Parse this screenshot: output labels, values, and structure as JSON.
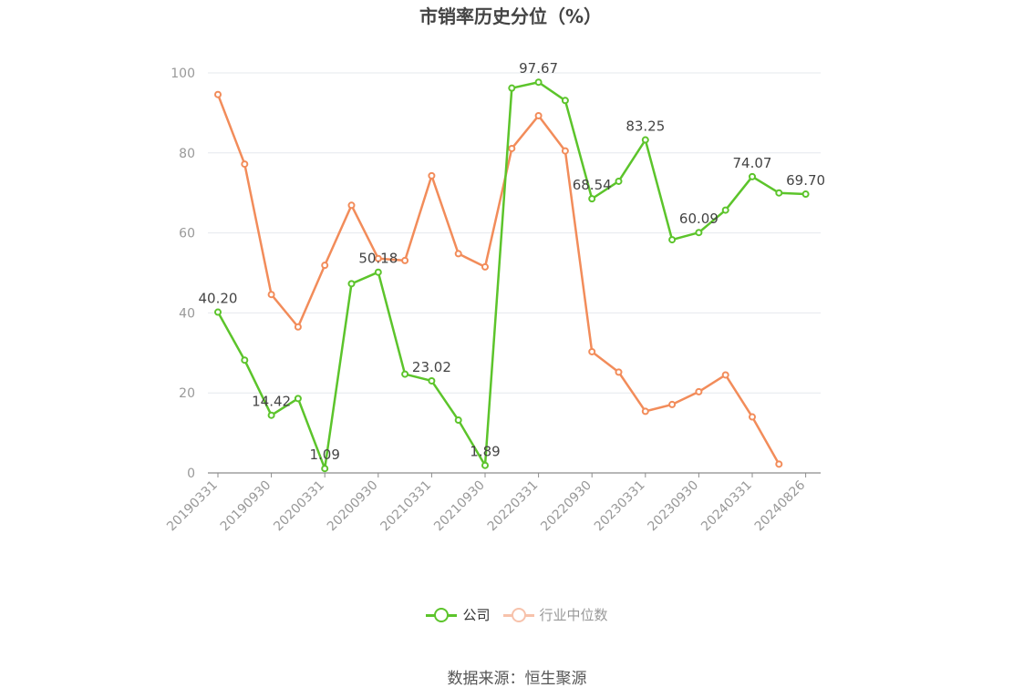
{
  "title": "市销率历史分位（%）",
  "source": "数据来源：恒生聚源",
  "legend": [
    {
      "label": "公司",
      "color": "#5cc42b"
    },
    {
      "label": "行业中位数",
      "color": "#f5ae93"
    }
  ],
  "chart_data": {
    "type": "line",
    "ylim": [
      0,
      100
    ],
    "yticks": [
      0,
      20,
      40,
      60,
      80,
      100
    ],
    "xtick_labels": [
      "20190331",
      "20190930",
      "20200331",
      "20200930",
      "20210331",
      "20210930",
      "20220331",
      "20220930",
      "20230331",
      "20230930",
      "20240331",
      "20240826"
    ],
    "grid": true,
    "legend_position": "bottom",
    "series": [
      {
        "name": "公司",
        "color": "#5cc42b",
        "values": [
          40.2,
          28.2,
          14.42,
          18.6,
          1.09,
          47.3,
          50.18,
          24.7,
          23.02,
          13.2,
          1.89,
          96.2,
          97.67,
          93.1,
          68.54,
          72.9,
          83.25,
          58.3,
          60.09,
          65.7,
          74.07,
          70.0,
          69.7
        ],
        "labels": {
          "0": "40.20",
          "2": "14.42",
          "4": "1.09",
          "6": "50.18",
          "8": "23.02",
          "10": "1.89",
          "12": "97.67",
          "14": "68.54",
          "16": "83.25",
          "18": "60.09",
          "20": "74.07",
          "22": "69.70"
        }
      },
      {
        "name": "行业中位数",
        "color": "#f28c5a",
        "values": [
          94.6,
          77.2,
          44.6,
          36.5,
          51.9,
          66.9,
          53.6,
          53.1,
          74.3,
          54.8,
          51.5,
          81.1,
          89.3,
          80.5,
          30.3,
          25.2,
          15.4,
          17.1,
          20.3,
          24.5,
          14.0,
          2.2,
          null
        ]
      }
    ]
  }
}
